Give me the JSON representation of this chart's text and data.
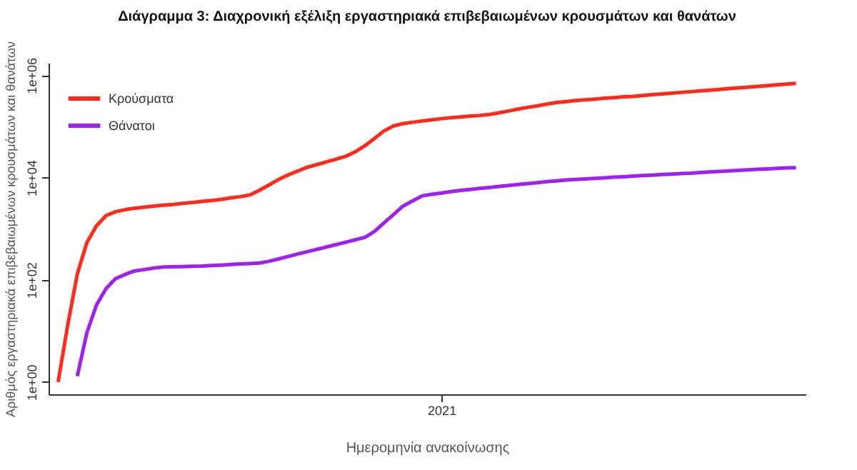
{
  "chart_data": {
    "type": "line",
    "title": "Διάγραμμα 3: Διαχρονική εξέλιξη εργαστηριακά επιβεβαιωμένων κρουσμάτων και θανάτων",
    "xlabel": "Ημερομηνία ανακοίνωσης",
    "ylabel": "Αριθμός εργαστηριακά επιβεβαιωμένων κρουσμάτων και θανάτων",
    "log": "y",
    "grid": false,
    "legend": "top left",
    "line_style": "solid",
    "marker": "none",
    "categories": [
      null,
      null,
      null,
      null,
      null,
      null,
      null,
      null,
      null,
      null,
      null,
      null,
      null,
      null,
      null,
      null,
      null,
      null,
      null,
      null,
      null,
      null,
      null,
      null,
      null,
      null,
      null,
      null,
      null,
      null,
      null,
      null,
      null,
      null,
      null,
      null,
      null,
      null,
      null,
      null,
      "2021",
      null,
      null,
      null,
      null,
      null,
      null,
      null,
      null,
      null,
      null,
      null,
      null,
      null,
      null,
      null,
      null,
      null,
      null,
      null,
      null,
      null,
      null,
      null,
      null,
      null,
      null,
      null,
      null,
      null,
      null,
      null,
      null,
      null,
      null,
      null,
      null,
      null
    ],
    "ylim": [
      0.575,
      1740000
    ],
    "yticks": [
      {
        "value": 1,
        "label": "1e+00"
      },
      {
        "value": 100,
        "label": "1e+02"
      },
      {
        "value": 10000,
        "label": "1e+04"
      },
      {
        "value": 1000000,
        "label": "1e+06"
      }
    ],
    "series": [
      {
        "name": "Κρούσματα",
        "color": "#ff2a1a",
        "values": [
          1,
          13,
          129,
          535,
          1130,
          1800,
          2140,
          2340,
          2510,
          2620,
          2750,
          2860,
          2960,
          3100,
          3240,
          3390,
          3540,
          3700,
          3980,
          4200,
          4550,
          5600,
          7100,
          9100,
          11200,
          13300,
          15800,
          17800,
          20100,
          22700,
          25800,
          31700,
          41500,
          57600,
          81000,
          102000,
          113000,
          120000,
          127000,
          134000,
          141000,
          147000,
          152000,
          158000,
          163000,
          170000,
          183000,
          199000,
          217000,
          234000,
          251000,
          272000,
          292000,
          305000,
          318000,
          329000,
          340000,
          353000,
          364000,
          377000,
          385000,
          400000,
          416000,
          429000,
          444000,
          460000,
          475000,
          492000,
          510000,
          527000,
          545000,
          564000,
          583000,
          603000,
          624000,
          645000,
          667000,
          690000
        ]
      },
      {
        "name": "Θάνατοι",
        "color": "#a020f0",
        "values": [
          null,
          null,
          1.3,
          9.2,
          32,
          67,
          105,
          127,
          149,
          158,
          169,
          177,
          179,
          181,
          183,
          185,
          189,
          193,
          198,
          203,
          207,
          212,
          229,
          255,
          284,
          318,
          353,
          392,
          437,
          485,
          541,
          603,
          673,
          875,
          1290,
          1880,
          2760,
          3480,
          4370,
          4680,
          4960,
          5290,
          5580,
          5820,
          6090,
          6360,
          6650,
          6950,
          7270,
          7560,
          7900,
          8260,
          8580,
          8920,
          9140,
          9360,
          9590,
          9830,
          10100,
          10300,
          10600,
          10900,
          11100,
          11400,
          11600,
          11900,
          12100,
          12500,
          12800,
          13100,
          13400,
          13800,
          14100,
          14400,
          14700,
          15000,
          15400,
          15500
        ]
      }
    ]
  }
}
